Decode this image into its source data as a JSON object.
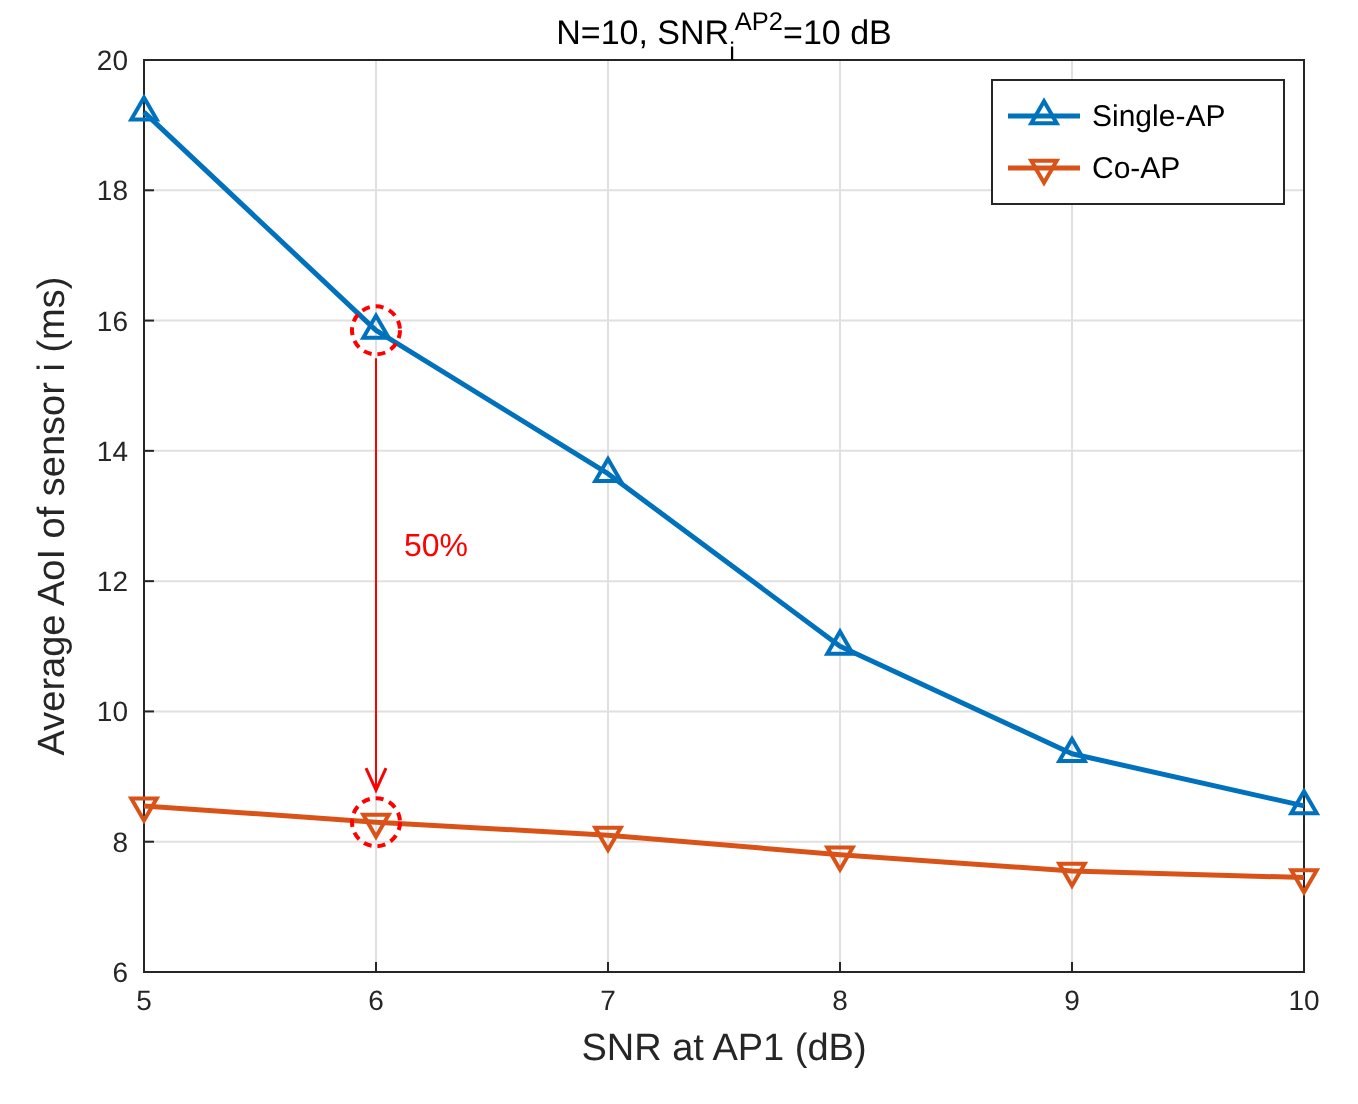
{
  "chart_data": {
    "type": "line",
    "title": "N=10,  SNR$_{i}$$^{AP2}$=10 dB",
    "xlabel": "SNR at AP1 (dB)",
    "ylabel": "Average AoI of sensor i (ms)",
    "x": [
      5,
      6,
      7,
      8,
      9,
      10
    ],
    "xlim": [
      5,
      10
    ],
    "xticks": [
      5,
      6,
      7,
      8,
      9,
      10
    ],
    "ylim": [
      6,
      20
    ],
    "yticks": [
      6,
      8,
      10,
      12,
      14,
      16,
      18,
      20
    ],
    "series": [
      {
        "name": "Single-AP",
        "color": "#0072bd",
        "values": [
          19.2,
          15.85,
          13.65,
          11.0,
          9.35,
          8.55
        ]
      },
      {
        "name": "Co-AP",
        "color": "#d95319",
        "values": [
          8.55,
          8.3,
          8.1,
          7.8,
          7.55,
          7.45
        ]
      }
    ],
    "annotations": [
      "50%"
    ],
    "grid": true,
    "legend": "top right",
    "marker": "triangle",
    "line_style": "solid"
  }
}
